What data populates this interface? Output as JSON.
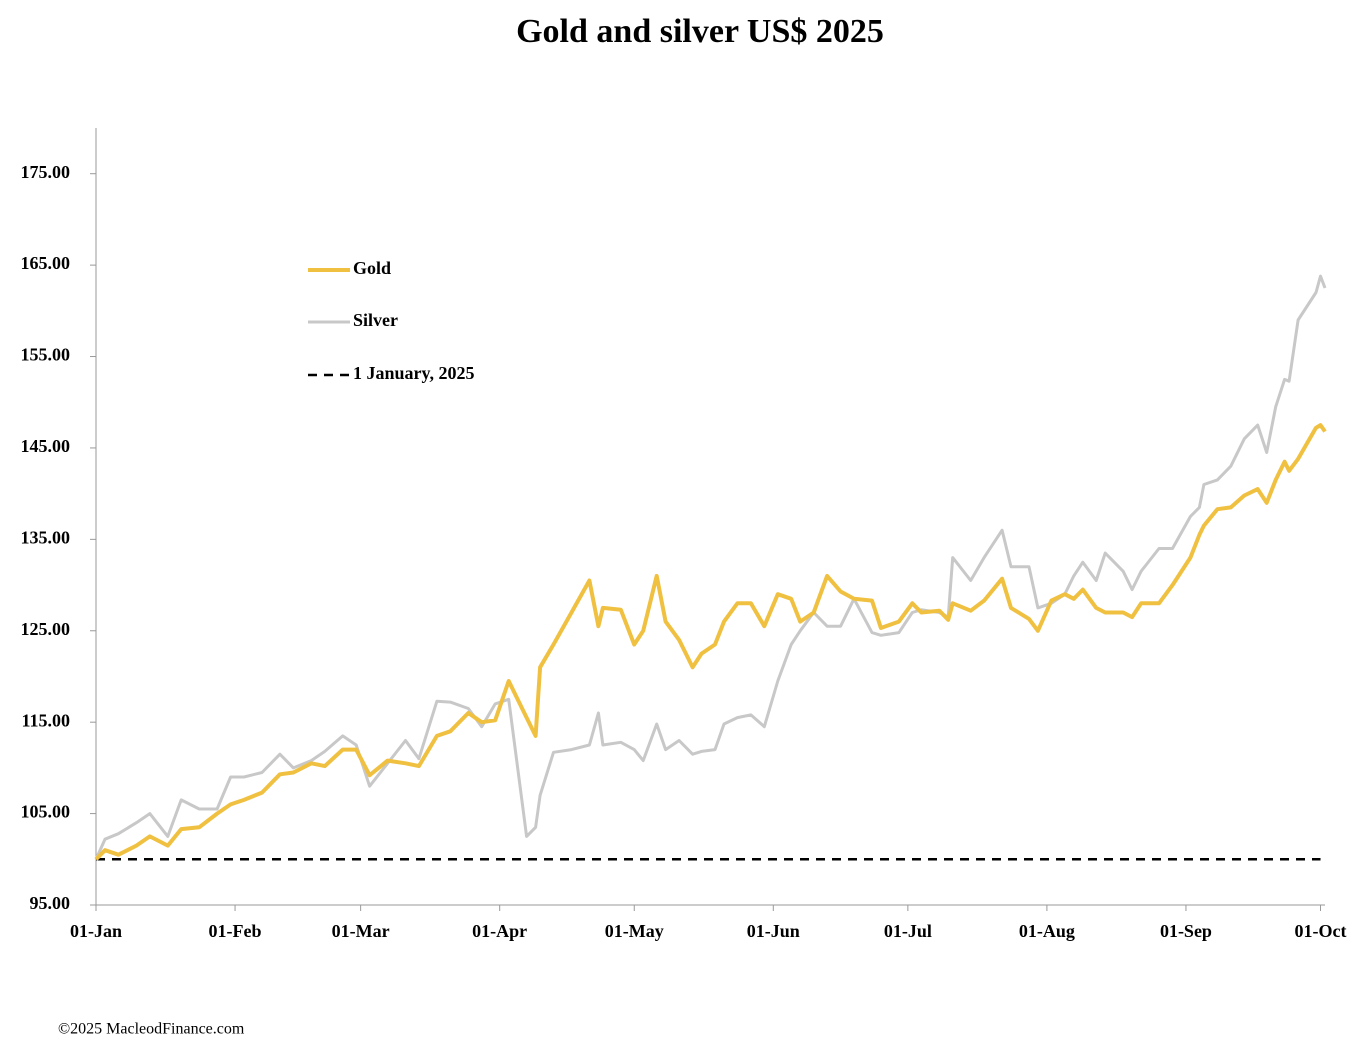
{
  "chart_data": {
    "type": "line",
    "title": "Gold and silver  US$ 2025",
    "footnote": "©2025 MacleodFinance.com",
    "x": [
      "01-Jan",
      "03-Jan",
      "06-Jan",
      "10-Jan",
      "13-Jan",
      "17-Jan",
      "20-Jan",
      "24-Jan",
      "28-Jan",
      "31-Jan",
      "03-Feb",
      "07-Feb",
      "11-Feb",
      "14-Feb",
      "18-Feb",
      "21-Feb",
      "25-Feb",
      "28-Feb",
      "03-Mar",
      "07-Mar",
      "11-Mar",
      "14-Mar",
      "18-Mar",
      "21-Mar",
      "25-Mar",
      "28-Mar",
      "31-Mar",
      "03-Apr",
      "07-Apr",
      "09-Apr",
      "10-Apr",
      "13-Apr",
      "17-Apr",
      "21-Apr",
      "23-Apr",
      "24-Apr",
      "28-Apr",
      "01-May",
      "03-May",
      "06-May",
      "08-May",
      "11-May",
      "14-May",
      "16-May",
      "19-May",
      "21-May",
      "24-May",
      "27-May",
      "30-May",
      "02-Jun",
      "05-Jun",
      "07-Jun",
      "10-Jun",
      "13-Jun",
      "16-Jun",
      "19-Jun",
      "23-Jun",
      "25-Jun",
      "29-Jun",
      "02-Jul",
      "04-Jul",
      "08-Jul",
      "10-Jul",
      "11-Jul",
      "15-Jul",
      "18-Jul",
      "22-Jul",
      "24-Jul",
      "28-Jul",
      "30-Jul",
      "02-Aug",
      "05-Aug",
      "07-Aug",
      "09-Aug",
      "12-Aug",
      "14-Aug",
      "18-Aug",
      "20-Aug",
      "22-Aug",
      "26-Aug",
      "29-Aug",
      "02-Sep",
      "04-Sep",
      "05-Sep",
      "08-Sep",
      "11-Sep",
      "14-Sep",
      "17-Sep",
      "19-Sep",
      "21-Sep",
      "23-Sep",
      "24-Sep",
      "26-Sep",
      "30-Sep",
      "01-Oct",
      "02-Oct"
    ],
    "series": [
      {
        "name": "Gold",
        "color": "#f0c040",
        "values": [
          100,
          101,
          100.5,
          101.5,
          102.5,
          101.5,
          103.3,
          103.5,
          105,
          106,
          106.5,
          107.3,
          109.3,
          109.5,
          110.5,
          110.2,
          112,
          112,
          109.2,
          110.8,
          110.5,
          110.2,
          113.5,
          114,
          116,
          115,
          115.2,
          119.5,
          115.5,
          113.5,
          121,
          123.5,
          127,
          130.5,
          125.5,
          127.5,
          127.3,
          123.5,
          125,
          131,
          126,
          124,
          121,
          122.5,
          123.5,
          126,
          128,
          128,
          125.5,
          129,
          128.5,
          126,
          127,
          131,
          129.3,
          128.5,
          128.3,
          125.3,
          126,
          128,
          127,
          127.2,
          126.2,
          128,
          127.2,
          128.3,
          130.7,
          127.5,
          126.3,
          125,
          128.3,
          129,
          128.5,
          129.5,
          127.5,
          127,
          127,
          126.5,
          128,
          128,
          130,
          133,
          135.5,
          136.5,
          138.3,
          138.5,
          139.8,
          140.5,
          139,
          141.5,
          143.5,
          142.5,
          143.8,
          147.2,
          147.5,
          146.8
        ]
      },
      {
        "name": "Silver",
        "color": "#c8c8c8",
        "values": [
          100,
          102.2,
          102.8,
          104,
          105,
          102.5,
          106.5,
          105.5,
          105.5,
          109,
          109,
          109.5,
          111.5,
          110,
          110.8,
          111.8,
          113.5,
          112.5,
          108,
          110.5,
          113,
          111,
          117.3,
          117.2,
          116.5,
          114.5,
          117,
          117.5,
          102.5,
          103.5,
          107,
          111.7,
          112,
          112.5,
          116,
          112.5,
          112.8,
          112,
          110.8,
          114.8,
          112,
          113,
          111.5,
          111.8,
          112,
          114.8,
          115.5,
          115.8,
          114.5,
          119.5,
          123.5,
          125,
          127,
          125.5,
          125.5,
          128.5,
          124.8,
          124.5,
          124.8,
          127,
          127.3,
          127,
          126.5,
          133,
          130.5,
          133,
          136,
          132,
          132,
          127.5,
          128,
          129,
          131,
          132.5,
          130.5,
          133.5,
          131.5,
          129.5,
          131.5,
          134,
          134,
          137.5,
          138.5,
          141,
          141.5,
          143,
          146,
          147.5,
          144.5,
          149.5,
          152.5,
          152.3,
          159,
          162,
          163.8,
          162.5
        ]
      }
    ],
    "reference": {
      "name": "1 January, 2025",
      "value": 100
    },
    "xlim": [
      "01-Jan",
      "02-Oct"
    ],
    "xticks": [
      "01-Jan",
      "01-Feb",
      "01-Mar",
      "01-Apr",
      "01-May",
      "01-Jun",
      "01-Jul",
      "01-Aug",
      "01-Sep",
      "01-Oct"
    ],
    "ylim": [
      95,
      180
    ],
    "yticks": [
      {
        "value": 95,
        "label": "95.00"
      },
      {
        "value": 105,
        "label": "105.00"
      },
      {
        "value": 115,
        "label": "115.00"
      },
      {
        "value": 125,
        "label": "125.00"
      },
      {
        "value": 135,
        "label": "135.00"
      },
      {
        "value": 145,
        "label": "145.00"
      },
      {
        "value": 155,
        "label": "155.00"
      },
      {
        "value": 165,
        "label": "165.00"
      },
      {
        "value": 175,
        "label": "175.00"
      }
    ],
    "grid": false
  }
}
